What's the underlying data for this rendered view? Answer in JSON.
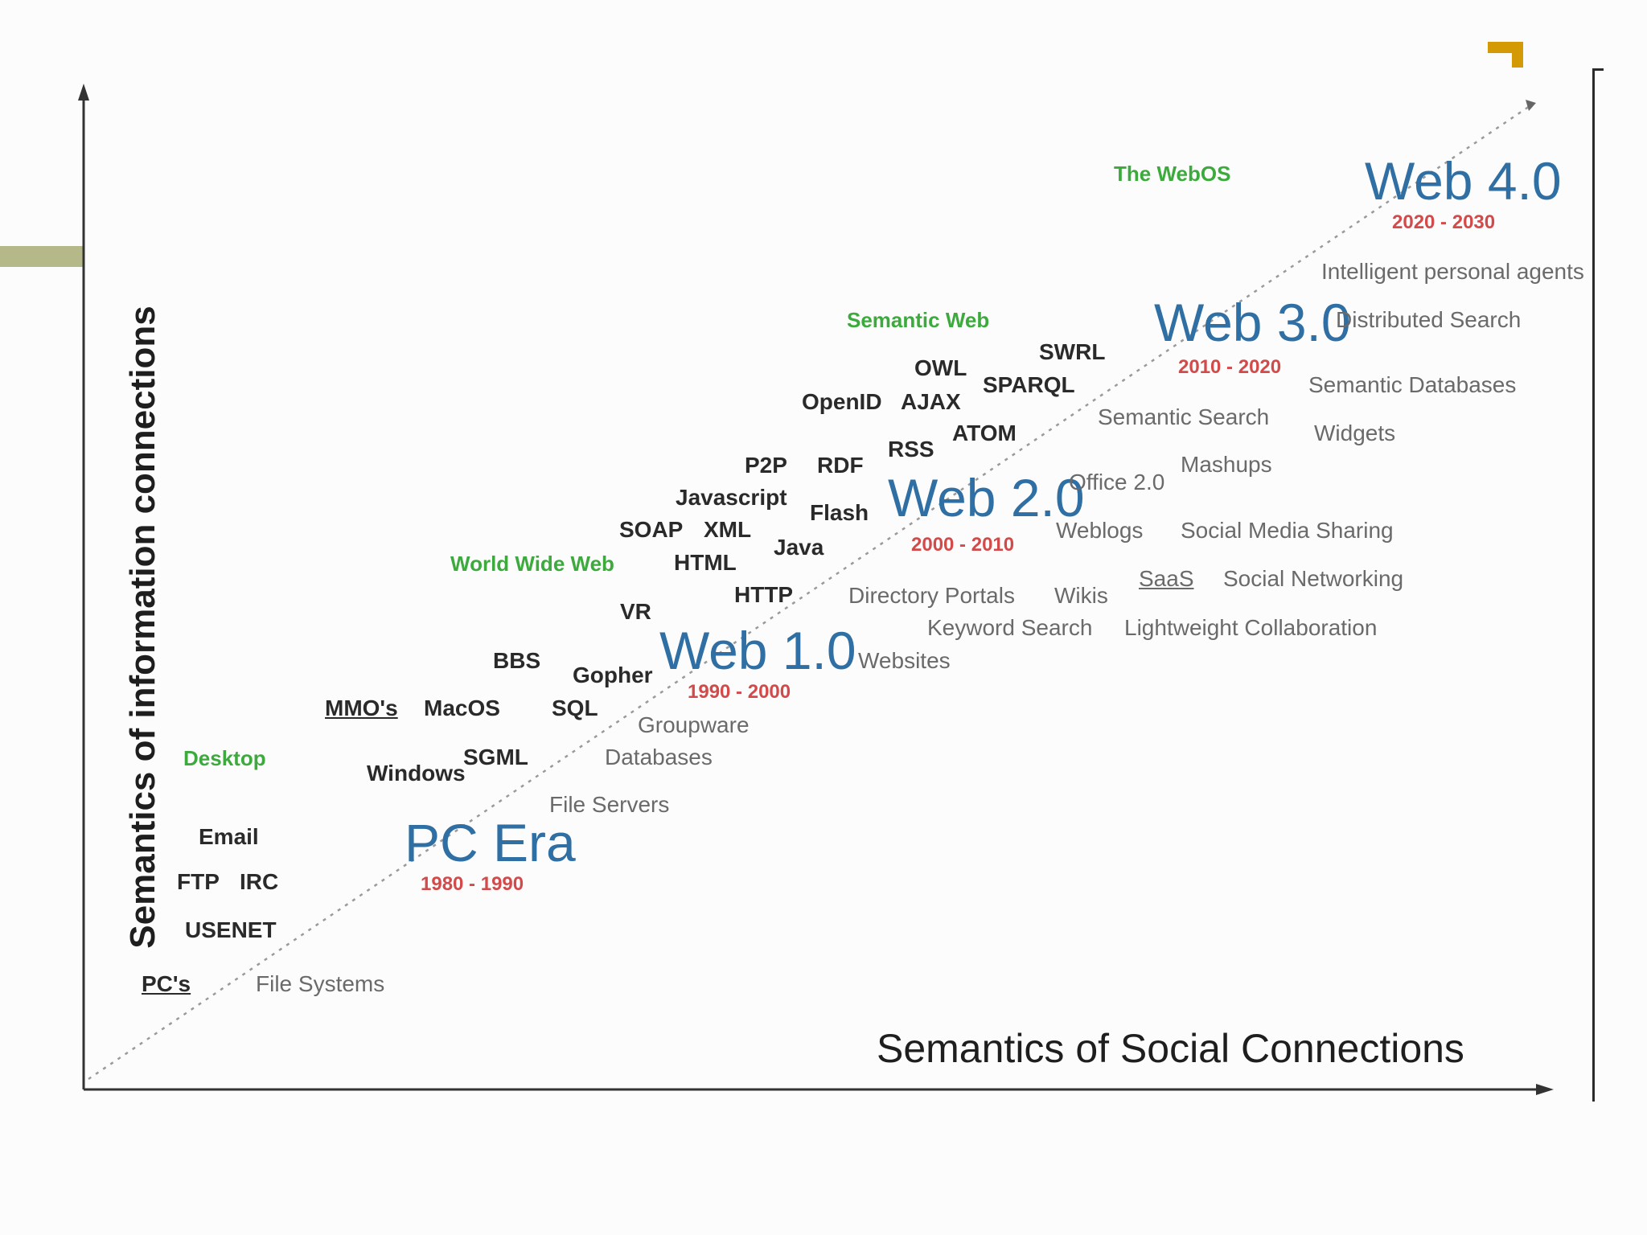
{
  "diagram": {
    "y_axis_label": "Semantics of information connections",
    "x_axis_label": "Semantics of Social Connections",
    "eras": [
      {
        "name": "PC Era",
        "years": "1980 - 1990",
        "label": "Desktop"
      },
      {
        "name": "Web 1.0",
        "years": "1990 - 2000",
        "label": "World Wide Web"
      },
      {
        "name": "Web 2.0",
        "years": "2000 - 2010",
        "label": ""
      },
      {
        "name": "Web 3.0",
        "years": "2010 - 2020",
        "label": "Semantic Web"
      },
      {
        "name": "Web 4.0",
        "years": "2020 - 2030",
        "label": "The WebOS"
      }
    ],
    "technologies": [
      "PC's",
      "USENET",
      "FTP",
      "IRC",
      "Email",
      "Windows",
      "SGML",
      "MMO's",
      "MacOS",
      "SQL",
      "BBS",
      "Gopher",
      "VR",
      "HTTP",
      "HTML",
      "Java",
      "SOAP",
      "XML",
      "Javascript",
      "Flash",
      "P2P",
      "RDF",
      "RSS",
      "ATOM",
      "OpenID",
      "AJAX",
      "OWL",
      "SPARQL",
      "SWRL"
    ],
    "applications": [
      "File Systems",
      "File Servers",
      "Databases",
      "Groupware",
      "Websites",
      "Keyword Search",
      "Directory Portals",
      "Wikis",
      "Lightweight Collaboration",
      "SaaS",
      "Social Networking",
      "Weblogs",
      "Social Media Sharing",
      "Office 2.0",
      "Mashups",
      "Semantic Search",
      "Widgets",
      "Semantic Databases",
      "Distributed Search",
      "Intelligent personal agents"
    ]
  },
  "colors": {
    "era": "#2f6fa3",
    "years": "#d24a4a",
    "green_label": "#3caa3c",
    "corner_accent": "#d39a06",
    "left_bar": "#b5b98a"
  }
}
